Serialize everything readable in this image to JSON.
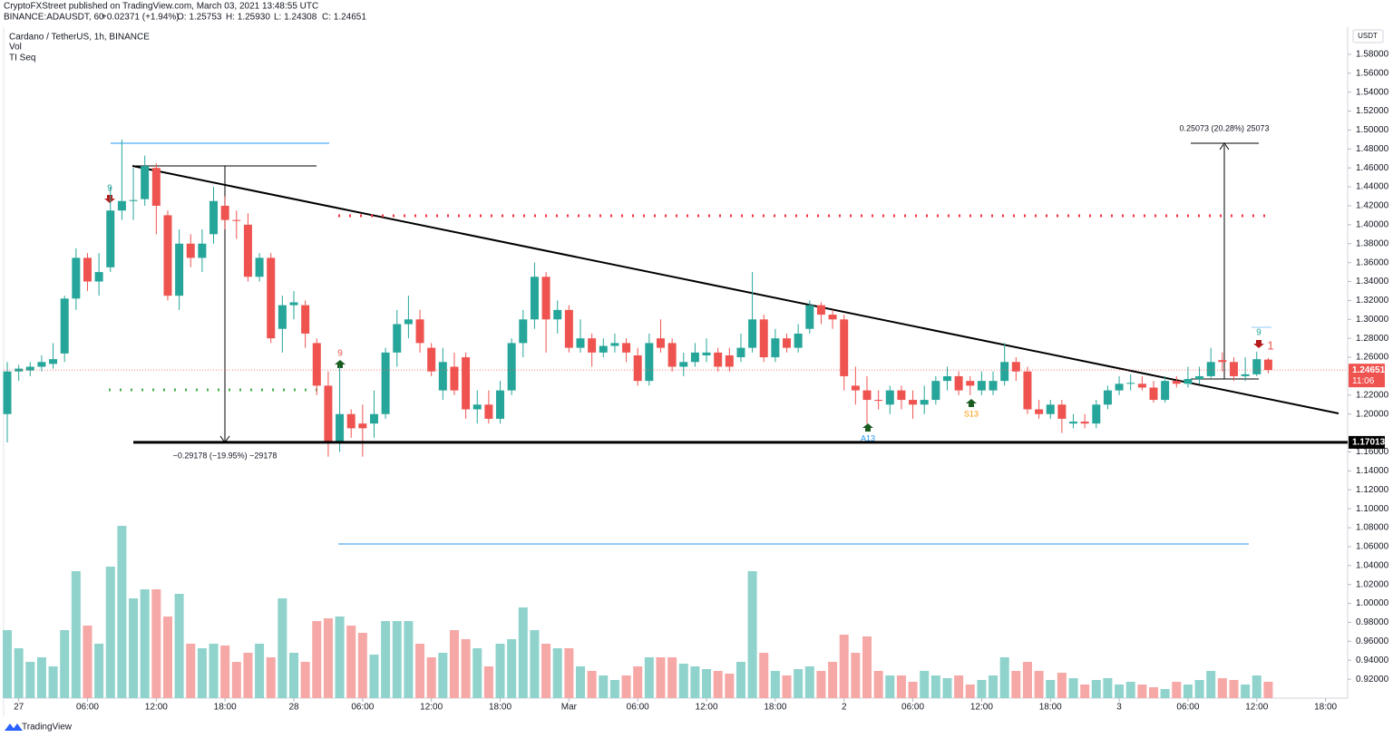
{
  "header": {
    "publisher": "CryptoFXStreet published on TradingView.com, March 03, 2021 13:48:55 UTC",
    "symbol": "BINANCE:ADAUSDT, 60",
    "change": "+0.02371 (+1.94%)",
    "open": "O: 1.25753",
    "high": "H: 1.25930",
    "low": "L: 1.24308",
    "close": "C: 1.24651",
    "legend": "Cardano / TetherUS, 1h, BINANCE",
    "vol": "Vol",
    "tiseq": "TI Seq",
    "footer": "TradingView"
  },
  "annotations": {
    "drop": "−0.29178 (−19.95%) −29178",
    "rise": "0.25073 (20.28%) 25073",
    "sig1": "9",
    "sig2": "9",
    "sig3": "A13",
    "sig4": "S13",
    "sig5": "9",
    "sig6": "1"
  },
  "chart_data": {
    "type": "candlestick",
    "unit": "USDT",
    "ylim": [
      0.9,
      1.6
    ],
    "yticks": [
      {
        "value": 0.92,
        "label": "0.92000"
      },
      {
        "value": 0.94,
        "label": "0.94000"
      },
      {
        "value": 0.96,
        "label": "0.96000"
      },
      {
        "value": 0.98,
        "label": "0.98000"
      },
      {
        "value": 1.0,
        "label": "1.00000"
      },
      {
        "value": 1.02,
        "label": "1.02000"
      },
      {
        "value": 1.04,
        "label": "1.04000"
      },
      {
        "value": 1.06,
        "label": "1.06000"
      },
      {
        "value": 1.08,
        "label": "1.08000"
      },
      {
        "value": 1.1,
        "label": "1.10000"
      },
      {
        "value": 1.12,
        "label": "1.12000"
      },
      {
        "value": 1.14,
        "label": "1.14000"
      },
      {
        "value": 1.16,
        "label": "1.16000"
      },
      {
        "value": 1.2,
        "label": "1.20000"
      },
      {
        "value": 1.22,
        "label": "1.22000"
      },
      {
        "value": 1.26,
        "label": "1.26000"
      },
      {
        "value": 1.28,
        "label": "1.28000"
      },
      {
        "value": 1.3,
        "label": "1.30000"
      },
      {
        "value": 1.32,
        "label": "1.32000"
      },
      {
        "value": 1.34,
        "label": "1.34000"
      },
      {
        "value": 1.36,
        "label": "1.36000"
      },
      {
        "value": 1.38,
        "label": "1.38000"
      },
      {
        "value": 1.4,
        "label": "1.40000"
      },
      {
        "value": 1.42,
        "label": "1.42000"
      },
      {
        "value": 1.44,
        "label": "1.44000"
      },
      {
        "value": 1.46,
        "label": "1.46000"
      },
      {
        "value": 1.48,
        "label": "1.48000"
      },
      {
        "value": 1.5,
        "label": "1.50000"
      },
      {
        "value": 1.52,
        "label": "1.52000"
      },
      {
        "value": 1.54,
        "label": "1.54000"
      },
      {
        "value": 1.56,
        "label": "1.56000"
      },
      {
        "value": 1.58,
        "label": "1.58000"
      }
    ],
    "xlim": [
      0,
      120
    ],
    "xticks": [
      {
        "value": 1,
        "label": "27"
      },
      {
        "value": 7,
        "label": "06:00"
      },
      {
        "value": 13,
        "label": "12:00"
      },
      {
        "value": 19,
        "label": "18:00"
      },
      {
        "value": 25,
        "label": "28"
      },
      {
        "value": 31,
        "label": "06:00"
      },
      {
        "value": 37,
        "label": "12:00"
      },
      {
        "value": 43,
        "label": "18:00"
      },
      {
        "value": 49,
        "label": "Mar"
      },
      {
        "value": 55,
        "label": "06:00"
      },
      {
        "value": 61,
        "label": "12:00"
      },
      {
        "value": 67,
        "label": "18:00"
      },
      {
        "value": 73,
        "label": "2"
      },
      {
        "value": 79,
        "label": "06:00"
      },
      {
        "value": 85,
        "label": "12:00"
      },
      {
        "value": 91,
        "label": "18:00"
      },
      {
        "value": 97,
        "label": "3"
      },
      {
        "value": 103,
        "label": "06:00"
      },
      {
        "value": 109,
        "label": "12:00"
      },
      {
        "value": 115,
        "label": "18:00"
      }
    ],
    "up_color": "#26a69a",
    "down_color": "#ef5350",
    "vol_up_color": "#8fd3cc",
    "vol_down_color": "#f6a8a6",
    "last_price": 1.24651,
    "countdown": "11:06",
    "support": 1.17013,
    "candles": [
      [
        1.2,
        1.255,
        1.17,
        1.245
      ],
      [
        1.245,
        1.252,
        1.235,
        1.248
      ],
      [
        1.246,
        1.255,
        1.24,
        1.25
      ],
      [
        1.25,
        1.262,
        1.245,
        1.255
      ],
      [
        1.253,
        1.275,
        1.248,
        1.258
      ],
      [
        1.264,
        1.325,
        1.255,
        1.322
      ],
      [
        1.322,
        1.375,
        1.31,
        1.365
      ],
      [
        1.365,
        1.37,
        1.33,
        1.34
      ],
      [
        1.34,
        1.37,
        1.325,
        1.35
      ],
      [
        1.355,
        1.44,
        1.35,
        1.415
      ],
      [
        1.415,
        1.49,
        1.405,
        1.425
      ],
      [
        1.425,
        1.46,
        1.405,
        1.426
      ],
      [
        1.427,
        1.473,
        1.42,
        1.462
      ],
      [
        1.46,
        1.465,
        1.39,
        1.42
      ],
      [
        1.41,
        1.415,
        1.32,
        1.325
      ],
      [
        1.325,
        1.395,
        1.31,
        1.38
      ],
      [
        1.38,
        1.39,
        1.355,
        1.365
      ],
      [
        1.365,
        1.395,
        1.35,
        1.38
      ],
      [
        1.39,
        1.44,
        1.38,
        1.425
      ],
      [
        1.42,
        1.43,
        1.395,
        1.405
      ],
      [
        1.405,
        1.415,
        1.385,
        1.404
      ],
      [
        1.4,
        1.412,
        1.34,
        1.345
      ],
      [
        1.345,
        1.37,
        1.34,
        1.365
      ],
      [
        1.365,
        1.37,
        1.275,
        1.28
      ],
      [
        1.29,
        1.325,
        1.265,
        1.315
      ],
      [
        1.315,
        1.33,
        1.3,
        1.318
      ],
      [
        1.315,
        1.32,
        1.27,
        1.285
      ],
      [
        1.275,
        1.28,
        1.22,
        1.23
      ],
      [
        1.23,
        1.245,
        1.155,
        1.17
      ],
      [
        1.17,
        1.25,
        1.16,
        1.2
      ],
      [
        1.2,
        1.205,
        1.175,
        1.185
      ],
      [
        1.19,
        1.21,
        1.155,
        1.185
      ],
      [
        1.19,
        1.225,
        1.175,
        1.2
      ],
      [
        1.2,
        1.27,
        1.195,
        1.265
      ],
      [
        1.265,
        1.31,
        1.25,
        1.295
      ],
      [
        1.295,
        1.325,
        1.28,
        1.3
      ],
      [
        1.3,
        1.31,
        1.265,
        1.275
      ],
      [
        1.27,
        1.275,
        1.24,
        1.245
      ],
      [
        1.225,
        1.27,
        1.215,
        1.255
      ],
      [
        1.25,
        1.265,
        1.22,
        1.225
      ],
      [
        1.26,
        1.265,
        1.195,
        1.205
      ],
      [
        1.205,
        1.225,
        1.19,
        1.21
      ],
      [
        1.21,
        1.225,
        1.19,
        1.195
      ],
      [
        1.195,
        1.235,
        1.19,
        1.225
      ],
      [
        1.225,
        1.28,
        1.22,
        1.275
      ],
      [
        1.275,
        1.31,
        1.26,
        1.3
      ],
      [
        1.3,
        1.36,
        1.29,
        1.345
      ],
      [
        1.345,
        1.35,
        1.265,
        1.3
      ],
      [
        1.3,
        1.32,
        1.285,
        1.31
      ],
      [
        1.31,
        1.315,
        1.265,
        1.27
      ],
      [
        1.27,
        1.3,
        1.265,
        1.28
      ],
      [
        1.28,
        1.285,
        1.25,
        1.265
      ],
      [
        1.265,
        1.28,
        1.26,
        1.272
      ],
      [
        1.272,
        1.285,
        1.265,
        1.275
      ],
      [
        1.275,
        1.28,
        1.255,
        1.265
      ],
      [
        1.262,
        1.27,
        1.23,
        1.235
      ],
      [
        1.235,
        1.285,
        1.23,
        1.275
      ],
      [
        1.28,
        1.3,
        1.265,
        1.27
      ],
      [
        1.275,
        1.28,
        1.245,
        1.25
      ],
      [
        1.25,
        1.265,
        1.24,
        1.255
      ],
      [
        1.255,
        1.275,
        1.25,
        1.265
      ],
      [
        1.262,
        1.28,
        1.255,
        1.265
      ],
      [
        1.265,
        1.27,
        1.245,
        1.25
      ],
      [
        1.262,
        1.27,
        1.245,
        1.25
      ],
      [
        1.26,
        1.285,
        1.255,
        1.27
      ],
      [
        1.27,
        1.35,
        1.265,
        1.3
      ],
      [
        1.3,
        1.305,
        1.255,
        1.26
      ],
      [
        1.26,
        1.29,
        1.255,
        1.28
      ],
      [
        1.28,
        1.285,
        1.265,
        1.27
      ],
      [
        1.27,
        1.295,
        1.265,
        1.285
      ],
      [
        1.29,
        1.32,
        1.285,
        1.315
      ],
      [
        1.315,
        1.318,
        1.295,
        1.305
      ],
      [
        1.305,
        1.31,
        1.29,
        1.3
      ],
      [
        1.3,
        1.305,
        1.225,
        1.24
      ],
      [
        1.23,
        1.25,
        1.21,
        1.225
      ],
      [
        1.225,
        1.24,
        1.19,
        1.215
      ],
      [
        1.215,
        1.225,
        1.205,
        1.214
      ],
      [
        1.21,
        1.23,
        1.2,
        1.225
      ],
      [
        1.225,
        1.23,
        1.205,
        1.215
      ],
      [
        1.215,
        1.225,
        1.195,
        1.21
      ],
      [
        1.21,
        1.23,
        1.2,
        1.215
      ],
      [
        1.215,
        1.24,
        1.21,
        1.235
      ],
      [
        1.235,
        1.25,
        1.225,
        1.24
      ],
      [
        1.24,
        1.245,
        1.22,
        1.225
      ],
      [
        1.235,
        1.24,
        1.22,
        1.23
      ],
      [
        1.225,
        1.245,
        1.22,
        1.235
      ],
      [
        1.225,
        1.245,
        1.22,
        1.235
      ],
      [
        1.235,
        1.275,
        1.23,
        1.255
      ],
      [
        1.255,
        1.26,
        1.235,
        1.245
      ],
      [
        1.245,
        1.25,
        1.2,
        1.205
      ],
      [
        1.205,
        1.215,
        1.195,
        1.2
      ],
      [
        1.2,
        1.215,
        1.195,
        1.21
      ],
      [
        1.21,
        1.215,
        1.18,
        1.195
      ],
      [
        1.19,
        1.2,
        1.185,
        1.192
      ],
      [
        1.192,
        1.2,
        1.185,
        1.19
      ],
      [
        1.19,
        1.215,
        1.185,
        1.21
      ],
      [
        1.21,
        1.23,
        1.205,
        1.225
      ],
      [
        1.225,
        1.24,
        1.22,
        1.232
      ],
      [
        1.232,
        1.242,
        1.225,
        1.233
      ],
      [
        1.232,
        1.24,
        1.225,
        1.228
      ],
      [
        1.228,
        1.235,
        1.212,
        1.215
      ],
      [
        1.215,
        1.24,
        1.212,
        1.235
      ],
      [
        1.235,
        1.24,
        1.228,
        1.232
      ],
      [
        1.232,
        1.25,
        1.228,
        1.237
      ],
      [
        1.237,
        1.25,
        1.232,
        1.24
      ],
      [
        1.24,
        1.27,
        1.238,
        1.255
      ],
      [
        1.257,
        1.265,
        1.245,
        1.255
      ],
      [
        1.255,
        1.26,
        1.235,
        1.24
      ],
      [
        1.24,
        1.26,
        1.235,
        1.242
      ],
      [
        1.242,
        1.266,
        1.24,
        1.258
      ],
      [
        1.25753,
        1.2593,
        1.24308,
        1.24651
      ]
    ],
    "volume_ylim": [
      0,
      200
    ],
    "volume": [
      75,
      55,
      40,
      45,
      35,
      75,
      140,
      80,
      60,
      145,
      190,
      110,
      120,
      120,
      90,
      115,
      60,
      55,
      60,
      58,
      40,
      50,
      60,
      45,
      110,
      50,
      40,
      85,
      88,
      90,
      80,
      72,
      48,
      85,
      85,
      85,
      60,
      45,
      50,
      75,
      65,
      55,
      35,
      60,
      65,
      100,
      75,
      60,
      55,
      55,
      35,
      30,
      25,
      20,
      25,
      35,
      45,
      45,
      45,
      38,
      35,
      32,
      30,
      27,
      40,
      140,
      50,
      30,
      25,
      32,
      35,
      30,
      40,
      70,
      50,
      68,
      30,
      25,
      25,
      18,
      30,
      25,
      22,
      25,
      15,
      20,
      25,
      45,
      30,
      40,
      30,
      20,
      28,
      22,
      15,
      20,
      22,
      15,
      18,
      15,
      12,
      10,
      18,
      15,
      20,
      30,
      22,
      20,
      15,
      25,
      18
    ]
  }
}
